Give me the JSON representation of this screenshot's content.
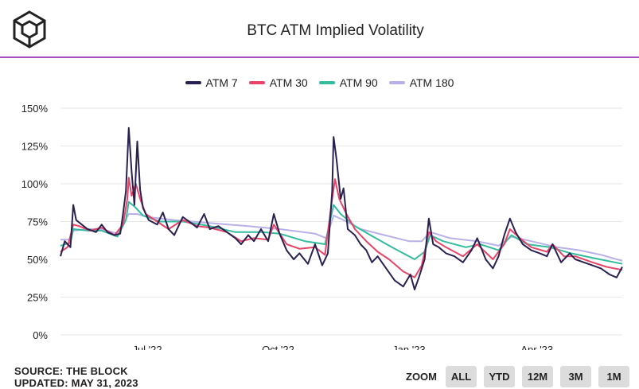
{
  "header": {
    "title": "BTC ATM Implied Volatility"
  },
  "footer": {
    "source": "SOURCE: THE BLOCK",
    "updated": "UPDATED: MAY 31, 2023"
  },
  "zoom": {
    "label": "ZOOM",
    "buttons": [
      "ALL",
      "YTD",
      "12M",
      "3M",
      "1M"
    ]
  },
  "colors": {
    "accent_rule": "#a24fc4",
    "grid": "#e6e6e6"
  },
  "chart_data": {
    "type": "line",
    "title": "BTC ATM Implied Volatility",
    "xlabel": "",
    "ylabel": "",
    "ylim": [
      0,
      150
    ],
    "yticks": [
      0,
      25,
      50,
      75,
      100,
      125,
      150
    ],
    "ytick_labels": [
      "0%",
      "25%",
      "50%",
      "75%",
      "100%",
      "125%",
      "150%"
    ],
    "xlim": [
      "2022-05-01",
      "2023-05-31"
    ],
    "xticks": [
      "2022-07-01",
      "2022-10-01",
      "2023-01-01",
      "2023-04-01"
    ],
    "xtick_labels": [
      "Jul '22",
      "Oct '22",
      "Jan '23",
      "Apr '23"
    ],
    "legend_position": "top-center",
    "grid": true,
    "series": [
      {
        "name": "ATM 7",
        "color": "#2a2150",
        "points": [
          [
            "2022-05-01",
            52
          ],
          [
            "2022-05-04",
            62
          ],
          [
            "2022-05-08",
            58
          ],
          [
            "2022-05-10",
            86
          ],
          [
            "2022-05-12",
            76
          ],
          [
            "2022-05-16",
            73
          ],
          [
            "2022-05-20",
            70
          ],
          [
            "2022-05-26",
            68
          ],
          [
            "2022-05-30",
            73
          ],
          [
            "2022-06-03",
            68
          ],
          [
            "2022-06-08",
            66
          ],
          [
            "2022-06-12",
            67
          ],
          [
            "2022-06-14",
            80
          ],
          [
            "2022-06-16",
            95
          ],
          [
            "2022-06-18",
            137
          ],
          [
            "2022-06-20",
            108
          ],
          [
            "2022-06-22",
            86
          ],
          [
            "2022-06-24",
            128
          ],
          [
            "2022-06-26",
            96
          ],
          [
            "2022-06-28",
            84
          ],
          [
            "2022-07-02",
            76
          ],
          [
            "2022-07-08",
            73
          ],
          [
            "2022-07-12",
            81
          ],
          [
            "2022-07-16",
            70
          ],
          [
            "2022-07-20",
            66
          ],
          [
            "2022-07-26",
            78
          ],
          [
            "2022-08-01",
            74
          ],
          [
            "2022-08-05",
            71
          ],
          [
            "2022-08-10",
            80
          ],
          [
            "2022-08-14",
            70
          ],
          [
            "2022-08-20",
            72
          ],
          [
            "2022-08-26",
            68
          ],
          [
            "2022-09-01",
            64
          ],
          [
            "2022-09-05",
            60
          ],
          [
            "2022-09-10",
            66
          ],
          [
            "2022-09-14",
            62
          ],
          [
            "2022-09-19",
            70
          ],
          [
            "2022-09-24",
            62
          ],
          [
            "2022-09-28",
            80
          ],
          [
            "2022-10-02",
            67
          ],
          [
            "2022-10-07",
            56
          ],
          [
            "2022-10-12",
            50
          ],
          [
            "2022-10-16",
            54
          ],
          [
            "2022-10-22",
            47
          ],
          [
            "2022-10-27",
            60
          ],
          [
            "2022-11-01",
            46
          ],
          [
            "2022-11-05",
            54
          ],
          [
            "2022-11-08",
            95
          ],
          [
            "2022-11-09",
            131
          ],
          [
            "2022-11-11",
            117
          ],
          [
            "2022-11-14",
            90
          ],
          [
            "2022-11-16",
            97
          ],
          [
            "2022-11-19",
            70
          ],
          [
            "2022-11-24",
            66
          ],
          [
            "2022-11-28",
            60
          ],
          [
            "2022-12-02",
            56
          ],
          [
            "2022-12-06",
            48
          ],
          [
            "2022-12-10",
            52
          ],
          [
            "2022-12-16",
            44
          ],
          [
            "2022-12-22",
            36
          ],
          [
            "2022-12-28",
            32
          ],
          [
            "2023-01-02",
            40
          ],
          [
            "2023-01-05",
            30
          ],
          [
            "2023-01-08",
            38
          ],
          [
            "2023-01-12",
            50
          ],
          [
            "2023-01-15",
            77
          ],
          [
            "2023-01-18",
            60
          ],
          [
            "2023-01-22",
            58
          ],
          [
            "2023-01-27",
            54
          ],
          [
            "2023-02-02",
            52
          ],
          [
            "2023-02-08",
            48
          ],
          [
            "2023-02-14",
            56
          ],
          [
            "2023-02-18",
            64
          ],
          [
            "2023-02-24",
            50
          ],
          [
            "2023-03-01",
            44
          ],
          [
            "2023-03-05",
            52
          ],
          [
            "2023-03-09",
            66
          ],
          [
            "2023-03-13",
            77
          ],
          [
            "2023-03-17",
            68
          ],
          [
            "2023-03-22",
            60
          ],
          [
            "2023-03-28",
            56
          ],
          [
            "2023-04-03",
            54
          ],
          [
            "2023-04-08",
            52
          ],
          [
            "2023-04-12",
            60
          ],
          [
            "2023-04-18",
            48
          ],
          [
            "2023-04-24",
            54
          ],
          [
            "2023-04-28",
            50
          ],
          [
            "2023-05-04",
            48
          ],
          [
            "2023-05-10",
            46
          ],
          [
            "2023-05-16",
            44
          ],
          [
            "2023-05-22",
            40
          ],
          [
            "2023-05-27",
            38
          ],
          [
            "2023-05-31",
            45
          ]
        ]
      },
      {
        "name": "ATM 30",
        "color": "#e74468",
        "points": [
          [
            "2022-05-01",
            55
          ],
          [
            "2022-05-06",
            58
          ],
          [
            "2022-05-10",
            73
          ],
          [
            "2022-05-14",
            72
          ],
          [
            "2022-05-22",
            69
          ],
          [
            "2022-05-30",
            71
          ],
          [
            "2022-06-08",
            66
          ],
          [
            "2022-06-14",
            73
          ],
          [
            "2022-06-17",
            90
          ],
          [
            "2022-06-18",
            104
          ],
          [
            "2022-06-20",
            92
          ],
          [
            "2022-06-23",
            100
          ],
          [
            "2022-06-26",
            90
          ],
          [
            "2022-06-30",
            80
          ],
          [
            "2022-07-08",
            75
          ],
          [
            "2022-07-16",
            70
          ],
          [
            "2022-07-26",
            76
          ],
          [
            "2022-08-05",
            72
          ],
          [
            "2022-08-14",
            71
          ],
          [
            "2022-08-26",
            68
          ],
          [
            "2022-09-05",
            62
          ],
          [
            "2022-09-14",
            64
          ],
          [
            "2022-09-24",
            63
          ],
          [
            "2022-09-28",
            73
          ],
          [
            "2022-10-07",
            60
          ],
          [
            "2022-10-16",
            57
          ],
          [
            "2022-10-27",
            58
          ],
          [
            "2022-11-03",
            53
          ],
          [
            "2022-11-08",
            90
          ],
          [
            "2022-11-10",
            103
          ],
          [
            "2022-11-13",
            90
          ],
          [
            "2022-11-18",
            80
          ],
          [
            "2022-11-24",
            70
          ],
          [
            "2022-12-02",
            62
          ],
          [
            "2022-12-10",
            55
          ],
          [
            "2022-12-18",
            50
          ],
          [
            "2022-12-28",
            42
          ],
          [
            "2023-01-05",
            38
          ],
          [
            "2023-01-10",
            46
          ],
          [
            "2023-01-15",
            68
          ],
          [
            "2023-01-20",
            62
          ],
          [
            "2023-01-27",
            58
          ],
          [
            "2023-02-08",
            52
          ],
          [
            "2023-02-18",
            60
          ],
          [
            "2023-03-01",
            50
          ],
          [
            "2023-03-09",
            60
          ],
          [
            "2023-03-13",
            70
          ],
          [
            "2023-03-20",
            64
          ],
          [
            "2023-03-28",
            58
          ],
          [
            "2023-04-08",
            55
          ],
          [
            "2023-04-12",
            60
          ],
          [
            "2023-04-20",
            52
          ],
          [
            "2023-04-28",
            52
          ],
          [
            "2023-05-10",
            48
          ],
          [
            "2023-05-20",
            45
          ],
          [
            "2023-05-31",
            43
          ]
        ]
      },
      {
        "name": "ATM 90",
        "color": "#34bc9f",
        "points": [
          [
            "2022-05-01",
            59
          ],
          [
            "2022-05-08",
            61
          ],
          [
            "2022-05-10",
            70
          ],
          [
            "2022-05-20",
            69
          ],
          [
            "2022-05-30",
            69
          ],
          [
            "2022-06-10",
            65
          ],
          [
            "2022-06-16",
            76
          ],
          [
            "2022-06-18",
            88
          ],
          [
            "2022-06-22",
            85
          ],
          [
            "2022-06-28",
            79
          ],
          [
            "2022-07-10",
            75
          ],
          [
            "2022-07-26",
            75
          ],
          [
            "2022-08-14",
            72
          ],
          [
            "2022-09-01",
            68
          ],
          [
            "2022-09-20",
            68
          ],
          [
            "2022-10-02",
            67
          ],
          [
            "2022-10-20",
            62
          ],
          [
            "2022-11-03",
            60
          ],
          [
            "2022-11-09",
            86
          ],
          [
            "2022-11-14",
            80
          ],
          [
            "2022-11-24",
            72
          ],
          [
            "2022-12-05",
            66
          ],
          [
            "2022-12-20",
            58
          ],
          [
            "2023-01-05",
            50
          ],
          [
            "2023-01-12",
            55
          ],
          [
            "2023-01-16",
            66
          ],
          [
            "2023-01-25",
            62
          ],
          [
            "2023-02-10",
            58
          ],
          [
            "2023-02-20",
            60
          ],
          [
            "2023-03-05",
            56
          ],
          [
            "2023-03-14",
            66
          ],
          [
            "2023-03-25",
            60
          ],
          [
            "2023-04-10",
            58
          ],
          [
            "2023-04-25",
            54
          ],
          [
            "2023-05-10",
            51
          ],
          [
            "2023-05-31",
            47
          ]
        ]
      },
      {
        "name": "ATM 180",
        "color": "#b8b0e6",
        "points": [
          [
            "2022-05-01",
            63
          ],
          [
            "2022-05-08",
            63
          ],
          [
            "2022-05-10",
            69
          ],
          [
            "2022-05-20",
            70
          ],
          [
            "2022-05-30",
            70
          ],
          [
            "2022-06-10",
            67
          ],
          [
            "2022-06-18",
            80
          ],
          [
            "2022-06-24",
            80
          ],
          [
            "2022-07-01",
            78
          ],
          [
            "2022-07-20",
            76
          ],
          [
            "2022-08-14",
            74
          ],
          [
            "2022-09-10",
            72
          ],
          [
            "2022-10-02",
            70
          ],
          [
            "2022-10-27",
            67
          ],
          [
            "2022-11-04",
            64
          ],
          [
            "2022-11-09",
            79
          ],
          [
            "2022-11-16",
            76
          ],
          [
            "2022-11-28",
            70
          ],
          [
            "2022-12-15",
            66
          ],
          [
            "2023-01-01",
            62
          ],
          [
            "2023-01-10",
            62
          ],
          [
            "2023-01-16",
            68
          ],
          [
            "2023-01-30",
            64
          ],
          [
            "2023-02-18",
            62
          ],
          [
            "2023-03-05",
            59
          ],
          [
            "2023-03-14",
            65
          ],
          [
            "2023-03-28",
            62
          ],
          [
            "2023-04-15",
            58
          ],
          [
            "2023-05-01",
            56
          ],
          [
            "2023-05-16",
            53
          ],
          [
            "2023-05-31",
            49
          ]
        ]
      }
    ]
  }
}
